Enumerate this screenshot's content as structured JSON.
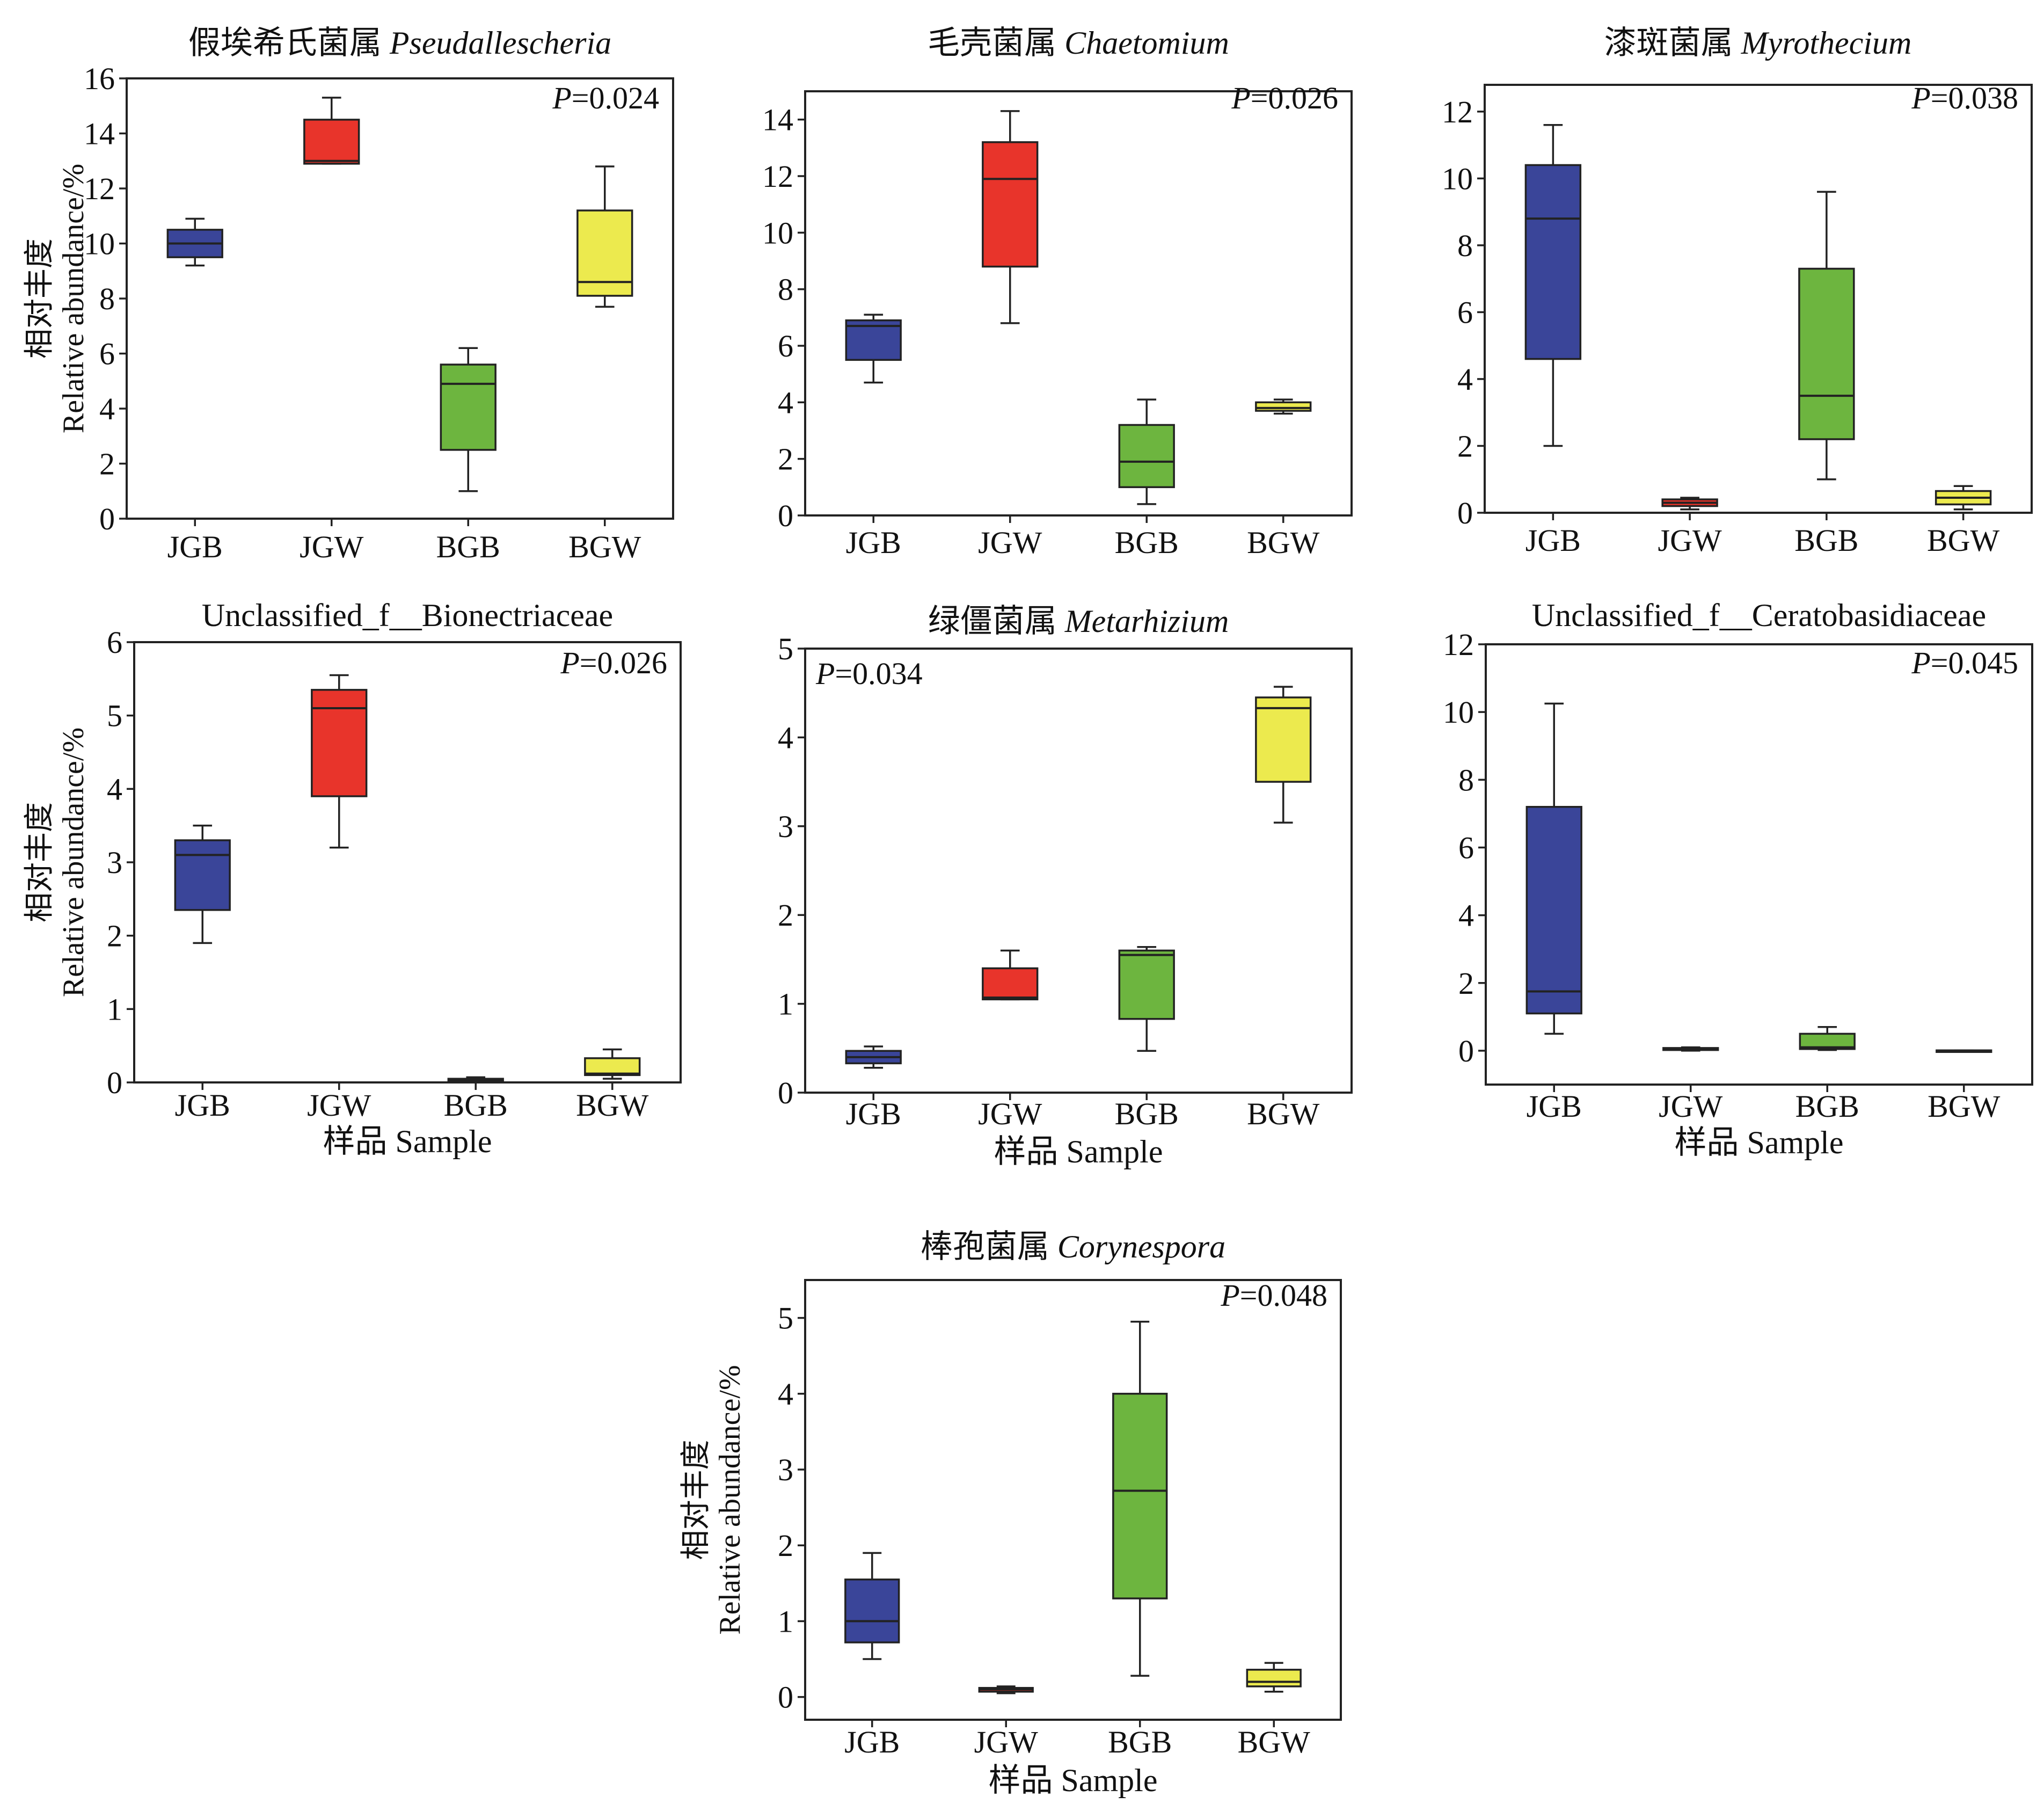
{
  "colors": {
    "JGB": "#3a4599",
    "JGW": "#e8342b",
    "BGB": "#6db53f",
    "BGW": "#ecea4e"
  },
  "chart_data": [
    {
      "type": "box",
      "title_cn": "假埃希氏菌属",
      "title_latin": "Pseudallescheria",
      "ylabel_cn": "相对丰度",
      "ylabel_en": "Relative abundance/%",
      "xlabel": "",
      "p_label": "P",
      "p_value": "=0.024",
      "ylim": [
        0,
        16
      ],
      "yticks": [
        0,
        2,
        4,
        6,
        8,
        10,
        12,
        14,
        16
      ],
      "categories": [
        "JGB",
        "JGW",
        "BGB",
        "BGW"
      ],
      "boxes": [
        {
          "min": 9.2,
          "q1": 9.5,
          "median": 10.0,
          "q3": 10.5,
          "max": 10.9
        },
        {
          "min": 12.9,
          "q1": 12.9,
          "median": 13.0,
          "q3": 14.5,
          "max": 15.3
        },
        {
          "min": 1.0,
          "q1": 2.5,
          "median": 4.9,
          "q3": 5.6,
          "max": 6.2
        },
        {
          "min": 7.7,
          "q1": 8.1,
          "median": 8.6,
          "q3": 11.2,
          "max": 12.8
        }
      ]
    },
    {
      "type": "box",
      "title_cn": "毛壳菌属",
      "title_latin": "Chaetomium",
      "ylabel_cn": "",
      "ylabel_en": "",
      "xlabel": "",
      "p_label": "P",
      "p_value": "=0.026",
      "ylim": [
        0,
        15
      ],
      "yticks": [
        0,
        2,
        4,
        6,
        8,
        10,
        12,
        14
      ],
      "categories": [
        "JGB",
        "JGW",
        "BGB",
        "BGW"
      ],
      "boxes": [
        {
          "min": 4.7,
          "q1": 5.5,
          "median": 6.7,
          "q3": 6.9,
          "max": 7.1
        },
        {
          "min": 6.8,
          "q1": 8.8,
          "median": 11.9,
          "q3": 13.2,
          "max": 14.3
        },
        {
          "min": 0.4,
          "q1": 1.0,
          "median": 1.9,
          "q3": 3.2,
          "max": 4.1
        },
        {
          "min": 3.6,
          "q1": 3.7,
          "median": 3.8,
          "q3": 4.0,
          "max": 4.1
        }
      ]
    },
    {
      "type": "box",
      "title_cn": "漆斑菌属",
      "title_latin": "Myrothecium",
      "ylabel_cn": "",
      "ylabel_en": "",
      "xlabel": "",
      "p_label": "P",
      "p_value": "=0.038",
      "ylim": [
        0,
        12.8
      ],
      "yticks": [
        0,
        2,
        4,
        6,
        8,
        10,
        12
      ],
      "categories": [
        "JGB",
        "JGW",
        "BGB",
        "BGW"
      ],
      "boxes": [
        {
          "min": 2.0,
          "q1": 4.6,
          "median": 8.8,
          "q3": 10.4,
          "max": 11.6
        },
        {
          "min": 0.1,
          "q1": 0.2,
          "median": 0.3,
          "q3": 0.4,
          "max": 0.45
        },
        {
          "min": 1.0,
          "q1": 2.2,
          "median": 3.5,
          "q3": 7.3,
          "max": 9.6
        },
        {
          "min": 0.1,
          "q1": 0.25,
          "median": 0.45,
          "q3": 0.65,
          "max": 0.8
        }
      ]
    },
    {
      "type": "box",
      "title_cn": "",
      "title_latin": "",
      "title_plain": "Unclassified_f__Bionectriaceae",
      "ylabel_cn": "相对丰度",
      "ylabel_en": "Relative abundance/%",
      "xlabel": "样品 Sample",
      "p_label": "P",
      "p_value": "=0.026",
      "ylim": [
        0,
        6
      ],
      "yticks": [
        0,
        1,
        2,
        3,
        4,
        5,
        6
      ],
      "categories": [
        "JGB",
        "JGW",
        "BGB",
        "BGW"
      ],
      "boxes": [
        {
          "min": 1.9,
          "q1": 2.35,
          "median": 3.1,
          "q3": 3.3,
          "max": 3.5
        },
        {
          "min": 3.2,
          "q1": 3.9,
          "median": 5.1,
          "q3": 5.35,
          "max": 5.55
        },
        {
          "min": 0.0,
          "q1": 0.01,
          "median": 0.03,
          "q3": 0.05,
          "max": 0.07
        },
        {
          "min": 0.05,
          "q1": 0.1,
          "median": 0.12,
          "q3": 0.33,
          "max": 0.45
        }
      ]
    },
    {
      "type": "box",
      "title_cn": "绿僵菌属",
      "title_latin": "Metarhizium",
      "ylabel_cn": "",
      "ylabel_en": "",
      "xlabel": "样品 Sample",
      "p_label": "P",
      "p_value": "=0.034",
      "ylim": [
        0,
        5
      ],
      "yticks": [
        0,
        1,
        2,
        3,
        4,
        5
      ],
      "categories": [
        "JGB",
        "JGW",
        "BGB",
        "BGW"
      ],
      "boxes": [
        {
          "min": 0.28,
          "q1": 0.33,
          "median": 0.4,
          "q3": 0.47,
          "max": 0.52
        },
        {
          "min": 1.05,
          "q1": 1.05,
          "median": 1.07,
          "q3": 1.4,
          "max": 1.6
        },
        {
          "min": 0.47,
          "q1": 0.83,
          "median": 1.55,
          "q3": 1.6,
          "max": 1.64
        },
        {
          "min": 3.04,
          "q1": 3.5,
          "median": 4.33,
          "q3": 4.45,
          "max": 4.57
        }
      ]
    },
    {
      "type": "box",
      "title_cn": "",
      "title_latin": "",
      "title_plain": "Unclassified_f__Ceratobasidiaceae",
      "ylabel_cn": "",
      "ylabel_en": "",
      "xlabel": "样品 Sample",
      "p_label": "P",
      "p_value": "=0.045",
      "ylim": [
        -1,
        12
      ],
      "yticks": [
        0,
        2,
        4,
        6,
        8,
        10,
        12
      ],
      "categories": [
        "JGB",
        "JGW",
        "BGB",
        "BGW"
      ],
      "boxes": [
        {
          "min": 0.5,
          "q1": 1.1,
          "median": 1.75,
          "q3": 7.2,
          "max": 10.25
        },
        {
          "min": 0.0,
          "q1": 0.02,
          "median": 0.05,
          "q3": 0.08,
          "max": 0.1
        },
        {
          "min": 0.02,
          "q1": 0.05,
          "median": 0.1,
          "q3": 0.5,
          "max": 0.7
        },
        {
          "min": 0.0,
          "q1": 0.0,
          "median": 0.0,
          "q3": 0.01,
          "max": 0.01
        }
      ]
    },
    {
      "type": "box",
      "title_cn": "棒孢菌属",
      "title_latin": "Corynespora",
      "ylabel_cn": "相对丰度",
      "ylabel_en": "Relative abundance/%",
      "xlabel": "样品 Sample",
      "p_label": "P",
      "p_value": "=0.048",
      "ylim": [
        -0.3,
        5.5
      ],
      "yticks": [
        0,
        1,
        2,
        3,
        4,
        5
      ],
      "categories": [
        "JGB",
        "JGW",
        "BGB",
        "BGW"
      ],
      "boxes": [
        {
          "min": 0.5,
          "q1": 0.72,
          "median": 1.0,
          "q3": 1.55,
          "max": 1.9
        },
        {
          "min": 0.05,
          "q1": 0.07,
          "median": 0.1,
          "q3": 0.12,
          "max": 0.14
        },
        {
          "min": 0.28,
          "q1": 1.3,
          "median": 2.72,
          "q3": 4.0,
          "max": 4.95
        },
        {
          "min": 0.07,
          "q1": 0.14,
          "median": 0.2,
          "q3": 0.36,
          "max": 0.45
        }
      ]
    }
  ]
}
